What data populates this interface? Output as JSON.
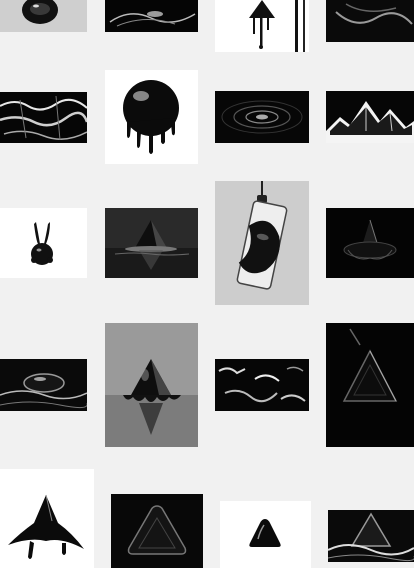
{
  "gallery": {
    "background": "#f1f1f1",
    "tiles": [
      {
        "name": "ink-drop-disc",
        "tone": "light"
      },
      {
        "name": "ink-ripple-splash",
        "tone": "dark"
      },
      {
        "name": "dripping-pyramid",
        "tone": "light"
      },
      {
        "name": "liquid-swirl",
        "tone": "dark"
      },
      {
        "name": "water-caustics",
        "tone": "dark"
      },
      {
        "name": "dripping-sphere",
        "tone": "light"
      },
      {
        "name": "ripple-rings",
        "tone": "dark"
      },
      {
        "name": "liquid-mountains",
        "tone": "dark"
      },
      {
        "name": "ferrofluid-bunny",
        "tone": "light"
      },
      {
        "name": "liquid-cone-reflection",
        "tone": "dark"
      },
      {
        "name": "liquid-in-phone",
        "tone": "light"
      },
      {
        "name": "ferrofluid-spike",
        "tone": "dark"
      },
      {
        "name": "ink-wave",
        "tone": "dark"
      },
      {
        "name": "pyramid-reflection",
        "tone": "light"
      },
      {
        "name": "liquid-ripples-shine",
        "tone": "dark"
      },
      {
        "name": "glossy-triangle-dark",
        "tone": "dark"
      },
      {
        "name": "liquid-spike-drop",
        "tone": "light"
      },
      {
        "name": "rounded-triangle-glow",
        "tone": "dark"
      },
      {
        "name": "small-glossy-triangle",
        "tone": "light"
      },
      {
        "name": "liquid-triangle-wave",
        "tone": "dark"
      }
    ]
  }
}
